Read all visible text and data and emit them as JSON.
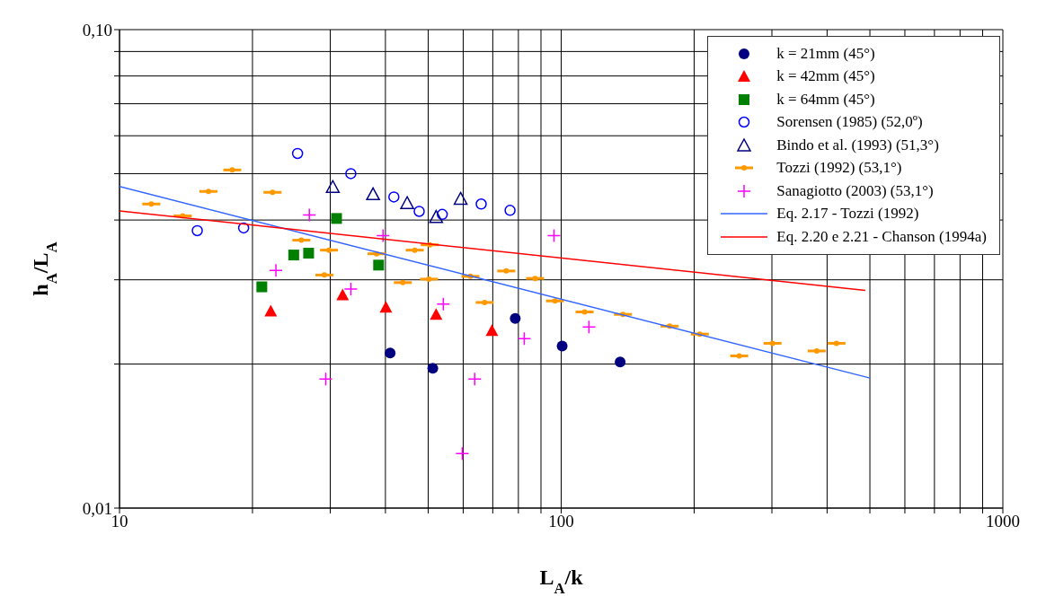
{
  "chart_data": {
    "type": "scatter",
    "xlabel": "L$_{A}$/k",
    "ylabel": "h$_{A}$/L$_{A}$",
    "log": "xy",
    "grid": true,
    "legend": "top right",
    "xlim": [
      10,
      1000
    ],
    "xticks": [
      10,
      {
        "value": 20,
        "label": null
      },
      {
        "value": 30,
        "label": null
      },
      {
        "value": 40,
        "label": null
      },
      {
        "value": 50,
        "label": null
      },
      {
        "value": 60,
        "label": null
      },
      {
        "value": 70,
        "label": null
      },
      {
        "value": 80,
        "label": null
      },
      {
        "value": 90,
        "label": null
      },
      100,
      {
        "value": 200,
        "label": null
      },
      {
        "value": 300,
        "label": null
      },
      {
        "value": 400,
        "label": null
      },
      {
        "value": 500,
        "label": null
      },
      {
        "value": 600,
        "label": null
      },
      {
        "value": 700,
        "label": null
      },
      {
        "value": 800,
        "label": null
      },
      {
        "value": 900,
        "label": null
      },
      1000
    ],
    "ylim": [
      0.01,
      0.1
    ],
    "yticks": [
      {
        "value": 0.01,
        "label": "0,01"
      },
      {
        "value": 0.02,
        "label": null
      },
      {
        "value": 0.03,
        "label": null
      },
      {
        "value": 0.04,
        "label": null
      },
      {
        "value": 0.05,
        "label": null
      },
      {
        "value": 0.06,
        "label": null
      },
      {
        "value": 0.07,
        "label": null
      },
      {
        "value": 0.08,
        "label": null
      },
      {
        "value": 0.09,
        "label": null
      },
      {
        "value": 0.1,
        "label": "0,10"
      }
    ],
    "series": [
      {
        "name": "k = 21mm (45°)",
        "color": "#000080",
        "marker": "circle",
        "x": [
          41.0,
          51.2,
          78.7,
          100.5,
          136
        ],
        "values": [
          0.0211,
          0.0196,
          0.0249,
          0.0218,
          0.0202
        ]
      },
      {
        "name": "k = 42mm (45°)",
        "color": "#ff0000",
        "marker": "triangle",
        "x": [
          22.0,
          32.0,
          40.1,
          52.1,
          69.7
        ],
        "values": [
          0.0258,
          0.0279,
          0.0263,
          0.0254,
          0.0235
        ]
      },
      {
        "name": "k = 64mm (45°)",
        "color": "#008000",
        "marker": "square",
        "x": [
          21.0,
          24.8,
          26.8,
          31.0,
          38.6
        ],
        "values": [
          0.029,
          0.0338,
          0.0341,
          0.0403,
          0.0322
        ]
      },
      {
        "name": "Sorensen (1985) (52,0º)",
        "color": "#0000ff",
        "marker": "circle",
        "x": [
          15.0,
          19.1,
          25.3,
          33.4,
          41.8,
          47.7,
          53.8,
          65.9,
          76.6
        ],
        "values": [
          0.038,
          0.0385,
          0.0551,
          0.05,
          0.0447,
          0.0417,
          0.0411,
          0.0432,
          0.0419
        ]
      },
      {
        "name": "Bindo et al. (1993) (51,3°)",
        "color": "#000080",
        "marker": "triangle",
        "x": [
          30.4,
          37.5,
          44.8,
          52.1,
          59.2
        ],
        "values": [
          0.0469,
          0.0453,
          0.0434,
          0.0406,
          0.0443
        ]
      },
      {
        "name": "Tozzi (1992) (53,1°)",
        "color": "#ff9900",
        "marker": "circle",
        "x": [
          11.8,
          13.9,
          15.9,
          18.0,
          22.2,
          25.8,
          29.1,
          29.8,
          38.2,
          43.8,
          46.6,
          50.2,
          50.4,
          62.3,
          67.1,
          75.1,
          87.3,
          96.8,
          113,
          138,
          176,
          206,
          253,
          301,
          379,
          420
        ],
        "values": [
          0.0432,
          0.0408,
          0.0459,
          0.0509,
          0.0457,
          0.0363,
          0.0307,
          0.0346,
          0.034,
          0.0296,
          0.0346,
          0.0301,
          0.0355,
          0.0305,
          0.0269,
          0.0313,
          0.0302,
          0.0271,
          0.0257,
          0.0254,
          0.024,
          0.0231,
          0.0208,
          0.0221,
          0.0213,
          0.0221
        ],
        "xerrors": [
          [
            11.26,
            12.37
          ],
          [
            13.26,
            14.57
          ],
          [
            15.17,
            16.66
          ],
          [
            17.18,
            18.86
          ],
          [
            21.18,
            23.27
          ],
          [
            24.62,
            27.04
          ],
          [
            27.77,
            30.5
          ],
          [
            28.44,
            31.23
          ],
          [
            36.45,
            40.03
          ],
          [
            41.79,
            45.9
          ],
          [
            44.47,
            48.84
          ],
          [
            47.9,
            52.61
          ],
          [
            48.09,
            52.82
          ],
          [
            59.45,
            65.29
          ],
          [
            64.03,
            70.32
          ],
          [
            71.66,
            78.7
          ],
          [
            83.3,
            91.49
          ],
          [
            92.37,
            101.4
          ],
          [
            107.8,
            118.4
          ],
          [
            131.7,
            144.6
          ],
          [
            167.9,
            184.4
          ],
          [
            196.6,
            215.9
          ],
          [
            241.4,
            265.1
          ],
          [
            287.2,
            315.4
          ],
          [
            361.7,
            397.2
          ],
          [
            400.8,
            440.2
          ]
        ]
      },
      {
        "name": "Sanagiotto (2003) (53,1°)",
        "color": "#ff00ff",
        "marker": "cross",
        "x": [
          22.6,
          26.9,
          29.3,
          33.4,
          39.5,
          54.1,
          59.7,
          63.7,
          82.5,
          96.3,
          115.6
        ],
        "values": [
          0.0314,
          0.041,
          0.0186,
          0.0287,
          0.0371,
          0.0267,
          0.013,
          0.0186,
          0.0226,
          0.0371,
          0.0239
        ]
      },
      {
        "name": "Eq. 2.17 - Tozzi (1992)",
        "type": "line",
        "color": "#3366ff",
        "marker": "none",
        "x": [
          10,
          500
        ],
        "values": [
          0.047,
          0.0187
        ]
      },
      {
        "name": "Eq. 2.20 e 2.21 - Chanson (1994a)",
        "type": "line",
        "color": "#ff0000",
        "marker": "none",
        "x": [
          10,
          488
        ],
        "values": [
          0.0418,
          0.0285
        ]
      }
    ]
  }
}
